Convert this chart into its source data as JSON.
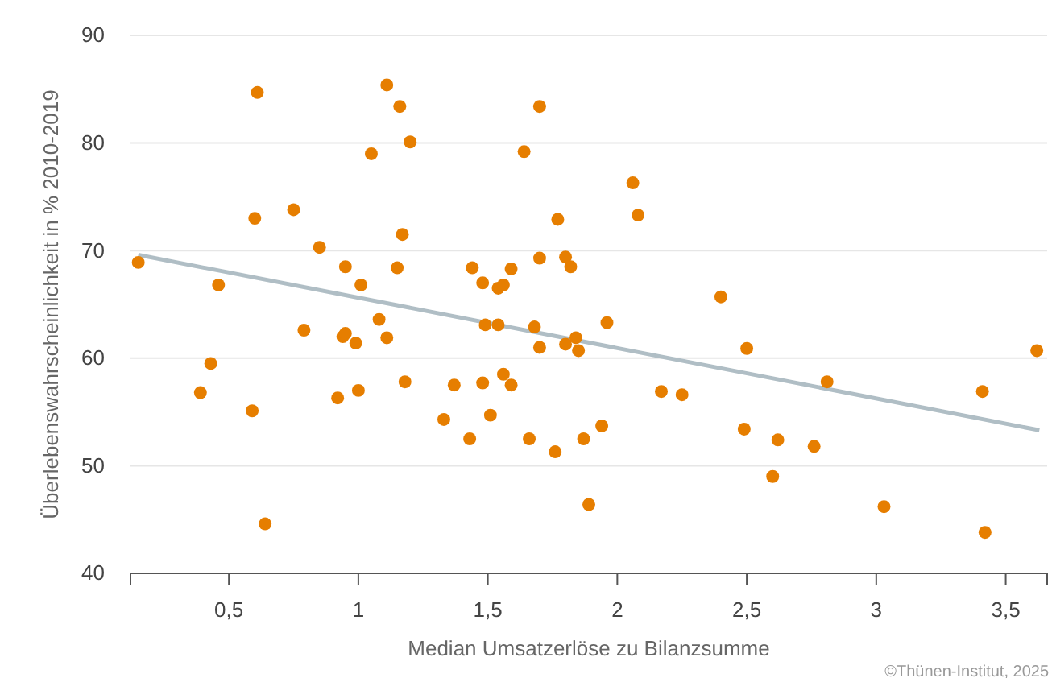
{
  "chart_data": {
    "type": "scatter",
    "xlabel": "Median Umsatzerlöse zu Bilanzsumme",
    "ylabel": "Überlebenswahrscheinlichkeit in % 2010-2019",
    "xlim": [
      0.12,
      3.66
    ],
    "ylim": [
      40,
      90
    ],
    "xticks": [
      {
        "value": 0.5,
        "label": "0,5"
      },
      1,
      {
        "value": 1.5,
        "label": "1,5"
      },
      2,
      {
        "value": 2.5,
        "label": "2,5"
      },
      3,
      {
        "value": 3.5,
        "label": "3,5"
      }
    ],
    "yticks": [
      40,
      50,
      60,
      70,
      80,
      90
    ],
    "grid": "y",
    "series": [
      {
        "color": "#e67e00",
        "marker": "circle",
        "x": [
          0.15,
          0.61,
          0.6,
          0.75,
          0.85,
          0.46,
          0.95,
          1.01,
          1.15,
          1.17,
          1.05,
          1.11,
          1.16,
          1.2,
          0.79,
          0.94,
          0.95,
          0.99,
          1.08,
          1.11,
          0.43,
          0.39,
          0.59,
          0.92,
          1.0,
          1.18,
          0.64,
          1.7,
          1.64,
          2.06,
          2.08,
          1.77,
          1.7,
          1.8,
          1.82,
          1.44,
          1.59,
          1.48,
          1.54,
          1.56,
          1.49,
          1.54,
          1.68,
          1.96,
          1.7,
          1.8,
          1.84,
          1.85,
          1.37,
          1.48,
          1.56,
          1.59,
          1.33,
          1.51,
          1.43,
          1.66,
          1.76,
          1.87,
          1.94,
          1.89,
          2.17,
          2.25,
          2.4,
          2.5,
          2.81,
          3.41,
          3.62,
          2.49,
          2.62,
          2.76,
          2.6,
          3.03,
          3.42
        ],
        "values": [
          68.9,
          84.7,
          73.0,
          73.8,
          70.3,
          66.8,
          68.5,
          66.8,
          68.4,
          71.5,
          79.0,
          85.4,
          83.4,
          80.1,
          62.6,
          62.0,
          62.3,
          61.4,
          63.6,
          61.9,
          59.5,
          56.8,
          55.1,
          56.3,
          57.0,
          57.8,
          44.6,
          83.4,
          79.2,
          76.3,
          73.3,
          72.9,
          69.3,
          69.4,
          68.5,
          68.4,
          68.3,
          67.0,
          66.5,
          66.8,
          63.1,
          63.1,
          62.9,
          63.3,
          61.0,
          61.3,
          61.9,
          60.7,
          57.5,
          57.7,
          58.5,
          57.5,
          54.3,
          54.7,
          52.5,
          52.5,
          51.3,
          52.5,
          53.7,
          46.4,
          56.9,
          56.6,
          65.7,
          60.9,
          57.8,
          56.9,
          60.7,
          53.4,
          52.4,
          51.8,
          49.0,
          46.2,
          43.8
        ]
      },
      {
        "type": "line",
        "color": "#b0bec5",
        "x": [
          0.15,
          3.63
        ],
        "values": [
          69.6,
          53.3
        ],
        "marker": "none"
      }
    ],
    "annotations": [
      "©Thünen-Institut, 2025"
    ]
  }
}
